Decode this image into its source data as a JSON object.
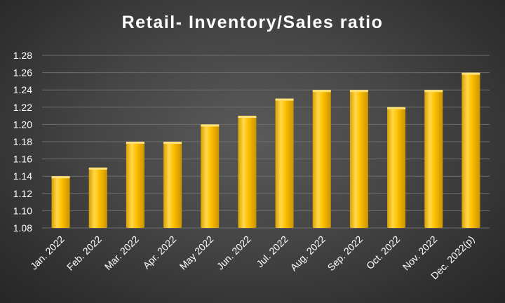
{
  "chart_data": {
    "type": "bar",
    "title": "Retail- Inventory/Sales ratio",
    "xlabel": "",
    "ylabel": "",
    "categories": [
      "Jan. 2022",
      "Feb. 2022",
      "Mar. 2022",
      "Apr. 2022",
      "May 2022",
      "Jun. 2022",
      "Jul. 2022",
      "Aug. 2022",
      "Sep. 2022",
      "Oct. 2022",
      "Nov. 2022",
      "Dec. 2022(p)"
    ],
    "values": [
      1.14,
      1.15,
      1.18,
      1.18,
      1.2,
      1.21,
      1.23,
      1.24,
      1.24,
      1.22,
      1.24,
      1.26
    ],
    "ylim": [
      1.08,
      1.28
    ],
    "yticks": [
      "1.08",
      "1.10",
      "1.12",
      "1.14",
      "1.16",
      "1.18",
      "1.20",
      "1.22",
      "1.24",
      "1.26",
      "1.28"
    ],
    "grid": true,
    "legend": "none",
    "colors": {
      "bar": "#FFC000",
      "bar_highlight": "#FFE27A",
      "bar_shadow": "#B8860B",
      "background": "#3f3f3f",
      "text": "#ffffff",
      "grid": "#6e6e6e"
    }
  }
}
